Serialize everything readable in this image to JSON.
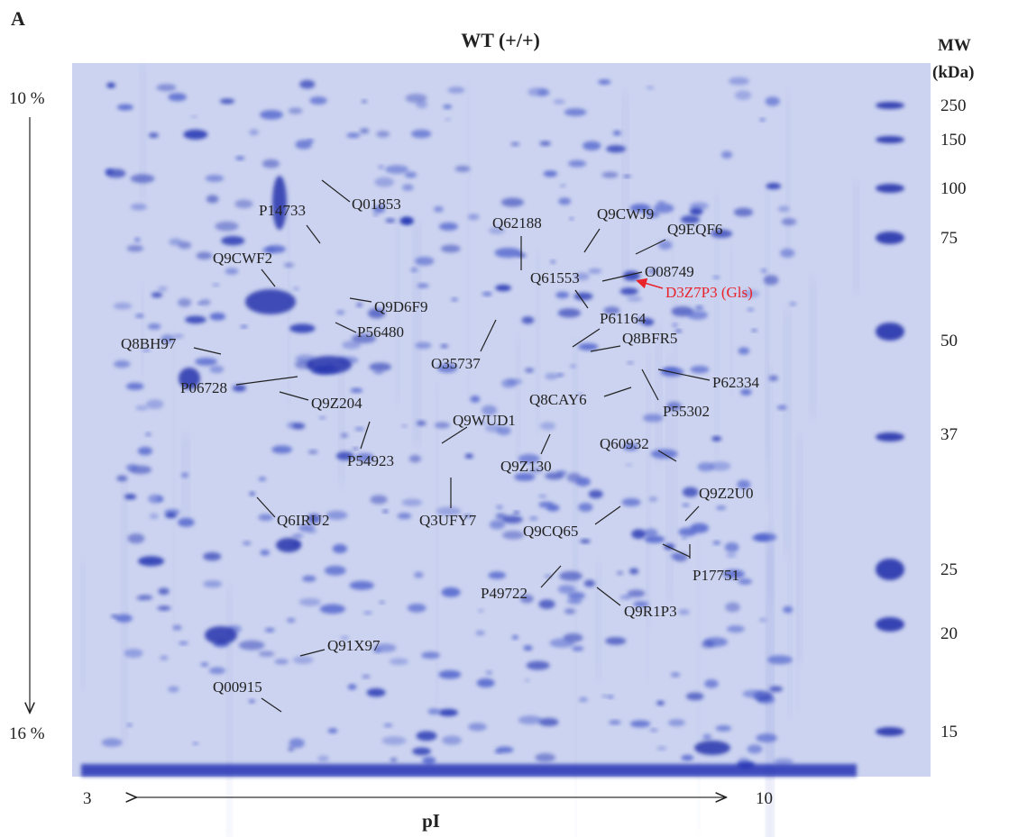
{
  "panel_label": "A",
  "title": "WT (+/+)",
  "mw_axis": {
    "title_lines": [
      "MW",
      "(kDa)"
    ],
    "labels": [
      "250",
      "150",
      "100",
      "75",
      "50",
      "37",
      "25",
      "20",
      "15"
    ]
  },
  "gradient": {
    "top": "10 %",
    "bottom": "16 %"
  },
  "ph_axis": {
    "start": "3",
    "end": "10",
    "title": "pI"
  },
  "proteins": [
    {
      "label": "Q01853"
    },
    {
      "label": "P14733"
    },
    {
      "label": "Q62188"
    },
    {
      "label": "Q9CWJ9"
    },
    {
      "label": "Q9EQF6"
    },
    {
      "label": "Q9CWF2"
    },
    {
      "label": "Q61553"
    },
    {
      "label": "O08749"
    },
    {
      "label": "Q9D6F9"
    },
    {
      "label": "P56480"
    },
    {
      "label": "P61164"
    },
    {
      "label": "O35737"
    },
    {
      "label": "Q8BH97"
    },
    {
      "label": "Q8BFR5"
    },
    {
      "label": "P06728"
    },
    {
      "label": "P62334"
    },
    {
      "label": "Q9Z204"
    },
    {
      "label": "Q8CAY6"
    },
    {
      "label": "P55302"
    },
    {
      "label": "Q9WUD1"
    },
    {
      "label": "Q60932"
    },
    {
      "label": "P54923"
    },
    {
      "label": "Q9Z130"
    },
    {
      "label": "Q9Z2U0"
    },
    {
      "label": "Q6IRU2"
    },
    {
      "label": "Q3UFY7"
    },
    {
      "label": "Q9CQ65"
    },
    {
      "label": "P17751"
    },
    {
      "label": "P49722"
    },
    {
      "label": "Q9R1P3"
    },
    {
      "label": "Q91X97"
    },
    {
      "label": "Q00915"
    }
  ],
  "highlight": {
    "label": "D3Z7P3 (Gls)"
  }
}
